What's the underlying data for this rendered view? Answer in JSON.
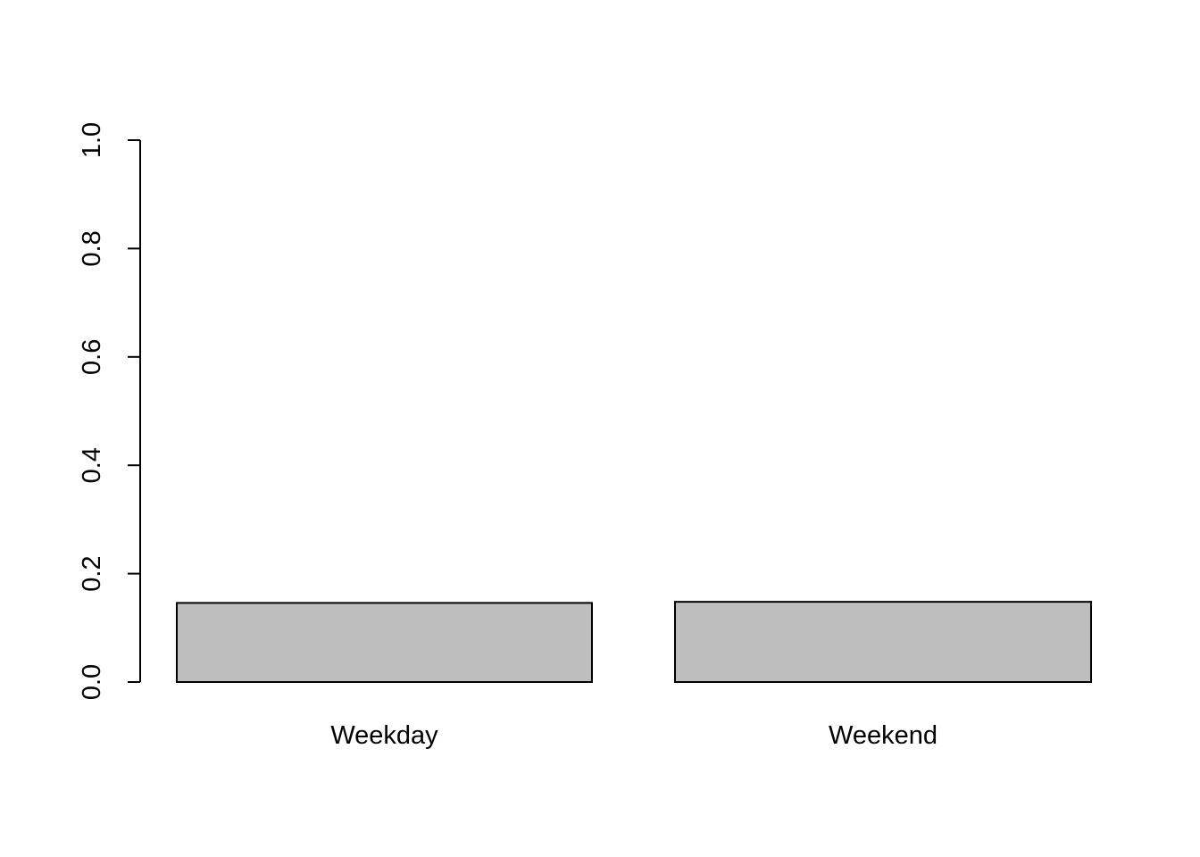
{
  "chart_data": {
    "type": "bar",
    "categories": [
      "Weekday",
      "Weekend"
    ],
    "values": [
      0.146,
      0.148
    ],
    "title": "",
    "xlabel": "",
    "ylabel": "",
    "ylim": [
      0,
      1.0
    ],
    "yticks": [
      0.0,
      0.2,
      0.4,
      0.6,
      0.8,
      1.0
    ],
    "ytick_labels": [
      "0.0",
      "0.2",
      "0.4",
      "0.6",
      "0.8",
      "1.0"
    ],
    "bar_color": "#bebebe",
    "bar_border_color": "#000000",
    "grid": false,
    "legend": "none"
  }
}
